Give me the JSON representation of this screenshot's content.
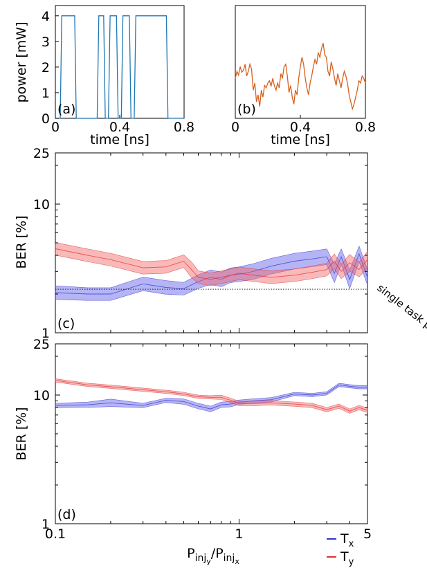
{
  "chart_data": [
    {
      "id": "a",
      "type": "line",
      "panel_label": "(a)",
      "xlabel": "time [ns]",
      "ylabel": "power [mW]",
      "xlim": [
        0,
        0.8
      ],
      "ylim": [
        0,
        4.4
      ],
      "x_ticks": [
        "0",
        "0.4",
        "0.8"
      ],
      "x_tick_values": [
        0,
        0.4,
        0.8
      ],
      "y_ticks": [
        "0",
        "1",
        "2",
        "3",
        "4"
      ],
      "y_tick_values": [
        0,
        1,
        2,
        3,
        4
      ],
      "color": "#1f77b4",
      "series": [
        {
          "x": [
            0,
            0.03,
            0.04,
            0.12,
            0.13,
            0.26,
            0.27,
            0.3,
            0.31,
            0.33,
            0.34,
            0.38,
            0.39,
            0.41,
            0.42,
            0.46,
            0.47,
            0.49,
            0.5,
            0.69,
            0.7,
            0.8
          ],
          "y": [
            0,
            0,
            4,
            4,
            0,
            0,
            4,
            4,
            0,
            0,
            4,
            4,
            0,
            0,
            4,
            4,
            0,
            0,
            4,
            4,
            0,
            0
          ]
        }
      ]
    },
    {
      "id": "b",
      "type": "line",
      "panel_label": "(b)",
      "xlabel": "time [ns]",
      "xlim": [
        0,
        0.8
      ],
      "ylim": [
        -1.2,
        1.2
      ],
      "x_ticks": [
        "0",
        "0.4",
        "0.8"
      ],
      "x_tick_values": [
        0,
        0.4,
        0.8
      ],
      "color": "#d95f1b",
      "series": [
        {
          "x": [
            0,
            0.01,
            0.02,
            0.03,
            0.04,
            0.05,
            0.06,
            0.07,
            0.08,
            0.09,
            0.1,
            0.11,
            0.12,
            0.13,
            0.14,
            0.15,
            0.16,
            0.17,
            0.18,
            0.19,
            0.2,
            0.21,
            0.22,
            0.23,
            0.24,
            0.25,
            0.26,
            0.27,
            0.28,
            0.29,
            0.3,
            0.31,
            0.32,
            0.33,
            0.34,
            0.35,
            0.36,
            0.37,
            0.38,
            0.39,
            0.4,
            0.41,
            0.42,
            0.43,
            0.44,
            0.45,
            0.46,
            0.47,
            0.48,
            0.49,
            0.5,
            0.51,
            0.52,
            0.53,
            0.54,
            0.55,
            0.56,
            0.57,
            0.58,
            0.59,
            0.6,
            0.61,
            0.62,
            0.63,
            0.64,
            0.65,
            0.66,
            0.67,
            0.68,
            0.69,
            0.7,
            0.71,
            0.72,
            0.73,
            0.74,
            0.75,
            0.76,
            0.77,
            0.78,
            0.79,
            0.8
          ],
          "y": [
            -0.35,
            -0.2,
            -0.28,
            -0.1,
            -0.22,
            -0.18,
            -0.05,
            -0.3,
            -0.2,
            -0.05,
            -0.15,
            -0.6,
            -0.45,
            -0.85,
            -0.7,
            -0.95,
            -0.6,
            -0.75,
            -0.5,
            -0.55,
            -0.45,
            -0.4,
            -0.52,
            -0.35,
            -0.5,
            -0.6,
            -0.45,
            -0.55,
            -0.25,
            -0.35,
            -0.1,
            -0.05,
            -0.3,
            -0.65,
            -0.5,
            -0.75,
            -0.9,
            -0.6,
            -0.7,
            -0.35,
            -0.1,
            0.1,
            -0.05,
            -0.35,
            -0.55,
            -0.7,
            -0.45,
            -0.3,
            -0.1,
            0.05,
            -0.05,
            0.2,
            0.1,
            0.28,
            0.4,
            0.15,
            0.1,
            -0.2,
            -0.3,
            0.0,
            -0.15,
            -0.35,
            -0.5,
            -0.25,
            -0.4,
            -0.55,
            -0.35,
            -0.2,
            -0.3,
            -0.45,
            -0.7,
            -0.85,
            -1.0,
            -0.9,
            -0.75,
            -0.6,
            -0.4,
            -0.45,
            -0.3,
            -0.35,
            -0.45
          ]
        }
      ]
    },
    {
      "id": "c",
      "type": "area",
      "panel_label": "(c)",
      "ylabel": "BER [%]",
      "xscale": "log",
      "yscale": "log",
      "xlim": [
        0.1,
        5
      ],
      "ylim": [
        1,
        25
      ],
      "y_ticks": [
        "1",
        "10",
        "25"
      ],
      "y_tick_values": [
        1,
        10,
        25
      ],
      "reference_line": {
        "label": "single task perf.",
        "y": 2.18
      },
      "series": [
        {
          "name": "Tx",
          "color": "#3333cc",
          "x": [
            0.1,
            0.15,
            0.2,
            0.3,
            0.4,
            0.5,
            0.6,
            0.7,
            0.8,
            0.9,
            1.0,
            1.2,
            1.5,
            2.0,
            2.5,
            3.0,
            3.3,
            3.6,
            4.0,
            4.5,
            5.0
          ],
          "y": [
            2.05,
            2.0,
            2.0,
            2.4,
            2.25,
            2.2,
            2.5,
            2.7,
            2.6,
            2.8,
            2.85,
            3.0,
            3.3,
            3.6,
            3.75,
            3.9,
            2.9,
            3.9,
            2.6,
            4.1,
            2.7
          ],
          "band": [
            0.13,
            0.12,
            0.12,
            0.13,
            0.13,
            0.12,
            0.13,
            0.14,
            0.14,
            0.14,
            0.14,
            0.15,
            0.15,
            0.15,
            0.15,
            0.15,
            0.18,
            0.15,
            0.18,
            0.15,
            0.15
          ]
        },
        {
          "name": "Ty",
          "color": "#e03030",
          "x": [
            0.1,
            0.15,
            0.2,
            0.3,
            0.4,
            0.5,
            0.55,
            0.6,
            0.7,
            0.8,
            1.0,
            1.2,
            1.5,
            2.0,
            2.5,
            3.0,
            3.3,
            3.6,
            4.0,
            4.5,
            5.0
          ],
          "y": [
            4.5,
            4.0,
            3.7,
            3.2,
            3.25,
            3.6,
            3.1,
            2.7,
            2.6,
            2.7,
            2.9,
            2.8,
            2.7,
            2.8,
            2.95,
            3.1,
            3.6,
            3.0,
            3.5,
            3.1,
            3.7
          ],
          "band": [
            0.12,
            0.12,
            0.12,
            0.12,
            0.12,
            0.12,
            0.15,
            0.12,
            0.12,
            0.12,
            0.12,
            0.12,
            0.12,
            0.12,
            0.12,
            0.12,
            0.14,
            0.14,
            0.16,
            0.14,
            0.16
          ]
        }
      ]
    },
    {
      "id": "d",
      "type": "area",
      "panel_label": "(d)",
      "ylabel": "BER [%]",
      "xlabel_parts": [
        "P",
        "inj",
        "y",
        "/P",
        "inj",
        "x"
      ],
      "xscale": "log",
      "yscale": "log",
      "xlim": [
        0.1,
        5
      ],
      "ylim": [
        1,
        25
      ],
      "x_ticks": [
        "0.1",
        "1",
        "5"
      ],
      "x_tick_values": [
        0.1,
        1,
        5
      ],
      "y_ticks": [
        "1",
        "10",
        "25"
      ],
      "y_tick_values": [
        1,
        10,
        25
      ],
      "legend": {
        "position": "lower-right"
      },
      "series": [
        {
          "name": "Tx",
          "color": "#3333cc",
          "x": [
            0.1,
            0.15,
            0.2,
            0.3,
            0.4,
            0.5,
            0.6,
            0.7,
            0.8,
            0.9,
            1.0,
            1.2,
            1.5,
            2.0,
            2.5,
            3.0,
            3.5,
            4.0,
            4.5,
            5.0
          ],
          "y": [
            8.3,
            8.4,
            8.7,
            8.3,
            9.1,
            8.9,
            8.2,
            7.8,
            8.4,
            8.5,
            8.8,
            9.0,
            9.2,
            10.2,
            10.0,
            10.3,
            12.0,
            11.7,
            11.5,
            11.5
          ],
          "band": [
            0.04,
            0.05,
            0.07,
            0.04,
            0.04,
            0.05,
            0.05,
            0.05,
            0.05,
            0.05,
            0.04,
            0.04,
            0.04,
            0.03,
            0.03,
            0.03,
            0.03,
            0.03,
            0.03,
            0.03
          ]
        },
        {
          "name": "Ty",
          "color": "#e03030",
          "x": [
            0.1,
            0.15,
            0.2,
            0.3,
            0.4,
            0.5,
            0.6,
            0.7,
            0.8,
            0.9,
            1.0,
            1.2,
            1.5,
            2.0,
            2.5,
            3.0,
            3.5,
            4.0,
            4.5,
            5.0
          ],
          "y": [
            13.0,
            12.0,
            11.6,
            11.0,
            10.6,
            10.2,
            9.7,
            9.6,
            9.6,
            9.1,
            8.6,
            8.6,
            8.7,
            8.5,
            8.3,
            7.7,
            8.2,
            7.5,
            8.0,
            7.6
          ],
          "band": [
            0.03,
            0.03,
            0.03,
            0.03,
            0.03,
            0.03,
            0.03,
            0.03,
            0.04,
            0.04,
            0.04,
            0.04,
            0.04,
            0.04,
            0.04,
            0.04,
            0.04,
            0.04,
            0.04,
            0.04
          ]
        }
      ]
    }
  ]
}
